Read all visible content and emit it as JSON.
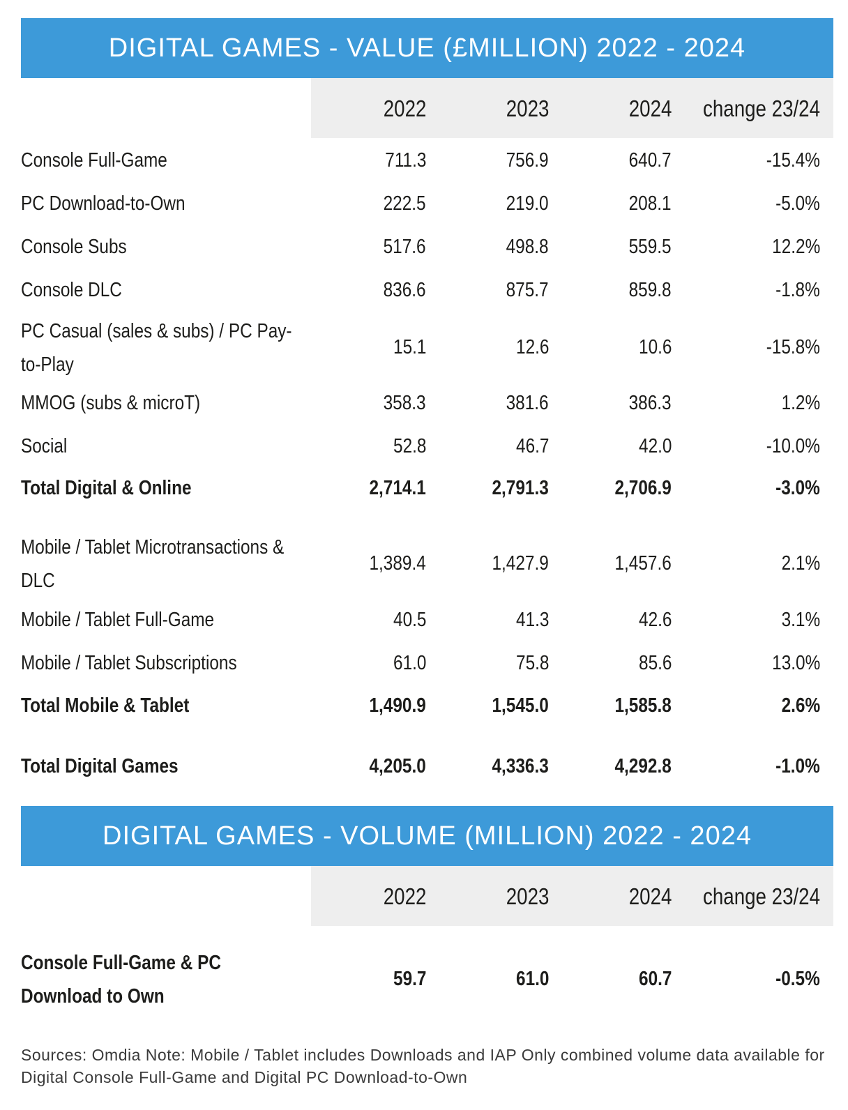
{
  "value_table": {
    "title": "DIGITAL GAMES - VALUE (£MILLION) 2022 - 2024",
    "headers": [
      "2022",
      "2023",
      "2024",
      "change 23/24"
    ],
    "rows": [
      {
        "label": "Console Full-Game",
        "values": [
          "711.3",
          "756.9",
          "640.7",
          "-15.4%"
        ]
      },
      {
        "label": "PC Download-to-Own",
        "values": [
          "222.5",
          "219.0",
          "208.1",
          "-5.0%"
        ]
      },
      {
        "label": "Console Subs",
        "values": [
          "517.6",
          "498.8",
          "559.5",
          "12.2%"
        ]
      },
      {
        "label": "Console DLC",
        "values": [
          "836.6",
          "875.7",
          "859.8",
          "-1.8%"
        ]
      },
      {
        "label": "PC Casual (sales & subs) / PC Pay-to-Play",
        "values": [
          "15.1",
          "12.6",
          "10.6",
          "-15.8%"
        ]
      },
      {
        "label": "MMOG (subs & microT)",
        "values": [
          "358.3",
          "381.6",
          "386.3",
          "1.2%"
        ]
      },
      {
        "label": "Social",
        "values": [
          "52.8",
          "46.7",
          "42.0",
          "-10.0%"
        ]
      },
      {
        "label": "Total Digital & Online",
        "values": [
          "2,714.1",
          "2,791.3",
          "2,706.9",
          "-3.0%"
        ]
      },
      {
        "label": "Mobile / Tablet Microtransactions & DLC",
        "values": [
          "1,389.4",
          "1,427.9",
          "1,457.6",
          "2.1%"
        ]
      },
      {
        "label": "Mobile / Tablet Full-Game",
        "values": [
          "40.5",
          "41.3",
          "42.6",
          "3.1%"
        ]
      },
      {
        "label": "Mobile / Tablet Subscriptions",
        "values": [
          "61.0",
          "75.8",
          "85.6",
          "13.0%"
        ]
      },
      {
        "label": "Total Mobile & Tablet",
        "values": [
          "1,490.9",
          "1,545.0",
          "1,585.8",
          "2.6%"
        ]
      },
      {
        "label": "Total Digital Games",
        "values": [
          "4,205.0",
          "4,336.3",
          "4,292.8",
          "-1.0%"
        ]
      }
    ]
  },
  "volume_table": {
    "title": "DIGITAL GAMES - VOLUME (MILLION) 2022 - 2024",
    "headers": [
      "2022",
      "2023",
      "2024",
      "change 23/24"
    ],
    "rows": [
      {
        "label": "Console Full-Game & PC Download to Own",
        "values": [
          "59.7",
          "61.0",
          "60.7",
          "-0.5%"
        ]
      }
    ]
  },
  "note": "Sources: Omdia Note: Mobile / Tablet includes Downloads and IAP    Only combined volume data available for Digital Console Full-Game and Digital PC Download-to-Own"
}
